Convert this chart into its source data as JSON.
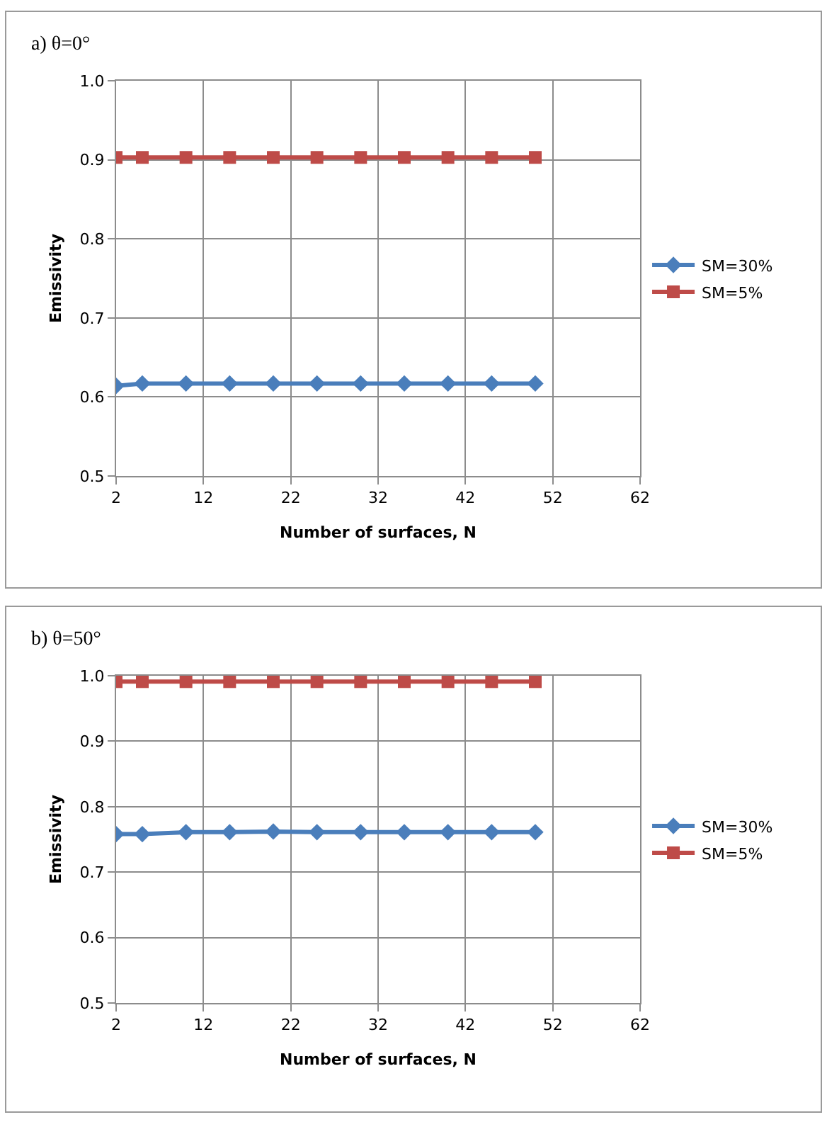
{
  "chart_data": [
    {
      "type": "line",
      "title": "a) θ=0°",
      "xlabel": "Number of surfaces, N",
      "ylabel": "Emissivity",
      "x": [
        2,
        5,
        10,
        15,
        20,
        25,
        30,
        35,
        40,
        45,
        50
      ],
      "series": [
        {
          "name": "SM=30%",
          "color": "#4a7ebb",
          "marker": "diamond",
          "values": [
            0.614,
            0.617,
            0.617,
            0.617,
            0.617,
            0.617,
            0.617,
            0.617,
            0.617,
            0.617,
            0.617
          ]
        },
        {
          "name": "SM=5%",
          "color": "#be4b48",
          "marker": "square",
          "values": [
            0.903,
            0.903,
            0.903,
            0.903,
            0.903,
            0.903,
            0.903,
            0.903,
            0.903,
            0.903,
            0.903
          ]
        }
      ],
      "xlim": [
        2,
        62
      ],
      "xticks": [
        2,
        12,
        22,
        32,
        42,
        52,
        62
      ],
      "ylim": [
        0.5,
        1.0
      ],
      "yticks": [
        {
          "value": 0.5,
          "label": "0.5"
        },
        {
          "value": 0.6,
          "label": "0.6"
        },
        {
          "value": 0.7,
          "label": "0.7"
        },
        {
          "value": 0.8,
          "label": "0.8"
        },
        {
          "value": 0.9,
          "label": "0.9"
        },
        {
          "value": 1.0,
          "label": "1.0"
        }
      ],
      "grid": true,
      "legend": "right",
      "line_style": "solid"
    },
    {
      "type": "line",
      "title": "b) θ=50°",
      "xlabel": "Number of surfaces, N",
      "ylabel": "Emissivity",
      "x": [
        2,
        5,
        10,
        15,
        20,
        25,
        30,
        35,
        40,
        45,
        50
      ],
      "series": [
        {
          "name": "SM=30%",
          "color": "#4a7ebb",
          "marker": "diamond",
          "values": [
            0.758,
            0.758,
            0.761,
            0.761,
            0.762,
            0.761,
            0.761,
            0.761,
            0.761,
            0.761,
            0.761
          ]
        },
        {
          "name": "SM=5%",
          "color": "#be4b48",
          "marker": "square",
          "values": [
            0.991,
            0.991,
            0.991,
            0.991,
            0.991,
            0.991,
            0.991,
            0.991,
            0.991,
            0.991,
            0.991
          ]
        }
      ],
      "xlim": [
        2,
        62
      ],
      "xticks": [
        2,
        12,
        22,
        32,
        42,
        52,
        62
      ],
      "ylim": [
        0.5,
        1.0
      ],
      "yticks": [
        {
          "value": 0.5,
          "label": "0.5"
        },
        {
          "value": 0.6,
          "label": "0.6"
        },
        {
          "value": 0.7,
          "label": "0.7"
        },
        {
          "value": 0.8,
          "label": "0.8"
        },
        {
          "value": 0.9,
          "label": "0.9"
        },
        {
          "value": 1.0,
          "label": "1.0"
        }
      ],
      "grid": true,
      "legend": "right",
      "line_style": "solid"
    }
  ]
}
